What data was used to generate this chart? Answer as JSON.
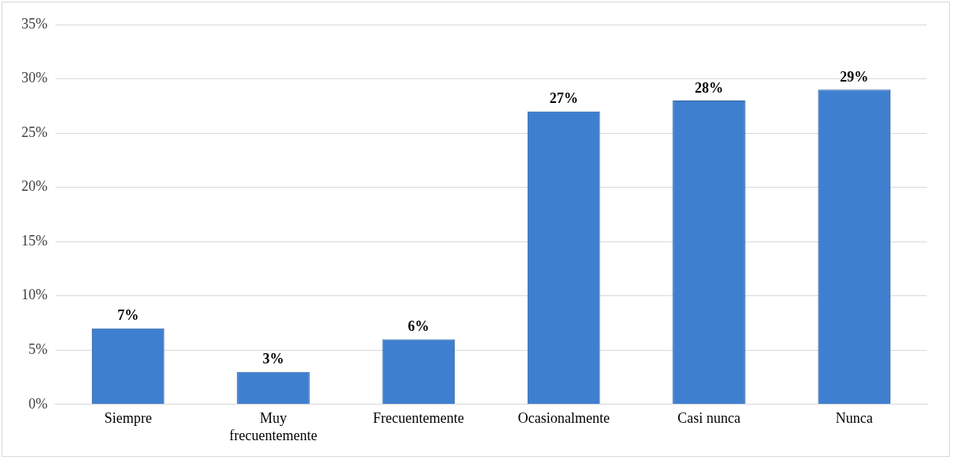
{
  "chart_data": {
    "type": "bar",
    "categories": [
      "Siempre",
      "Muy frecuentemente",
      "Frecuentemente",
      "Ocasionalmente",
      "Casi nunca",
      "Nunca"
    ],
    "values": [
      7,
      3,
      6,
      27,
      28,
      29
    ],
    "color": "#3f7fcf",
    "value_labels": [
      "7%",
      "3%",
      "6%",
      "27%",
      "28%",
      "29%"
    ],
    "ylim": [
      0,
      35
    ],
    "yticks": [
      {
        "value": 0,
        "label": "0%"
      },
      {
        "value": 5,
        "label": "5%"
      },
      {
        "value": 10,
        "label": "10%"
      },
      {
        "value": 15,
        "label": "15%"
      },
      {
        "value": 20,
        "label": "20%"
      },
      {
        "value": 25,
        "label": "25%"
      },
      {
        "value": 30,
        "label": "30%"
      },
      {
        "value": 35,
        "label": "35%"
      }
    ],
    "grid": "y",
    "legend": false
  }
}
